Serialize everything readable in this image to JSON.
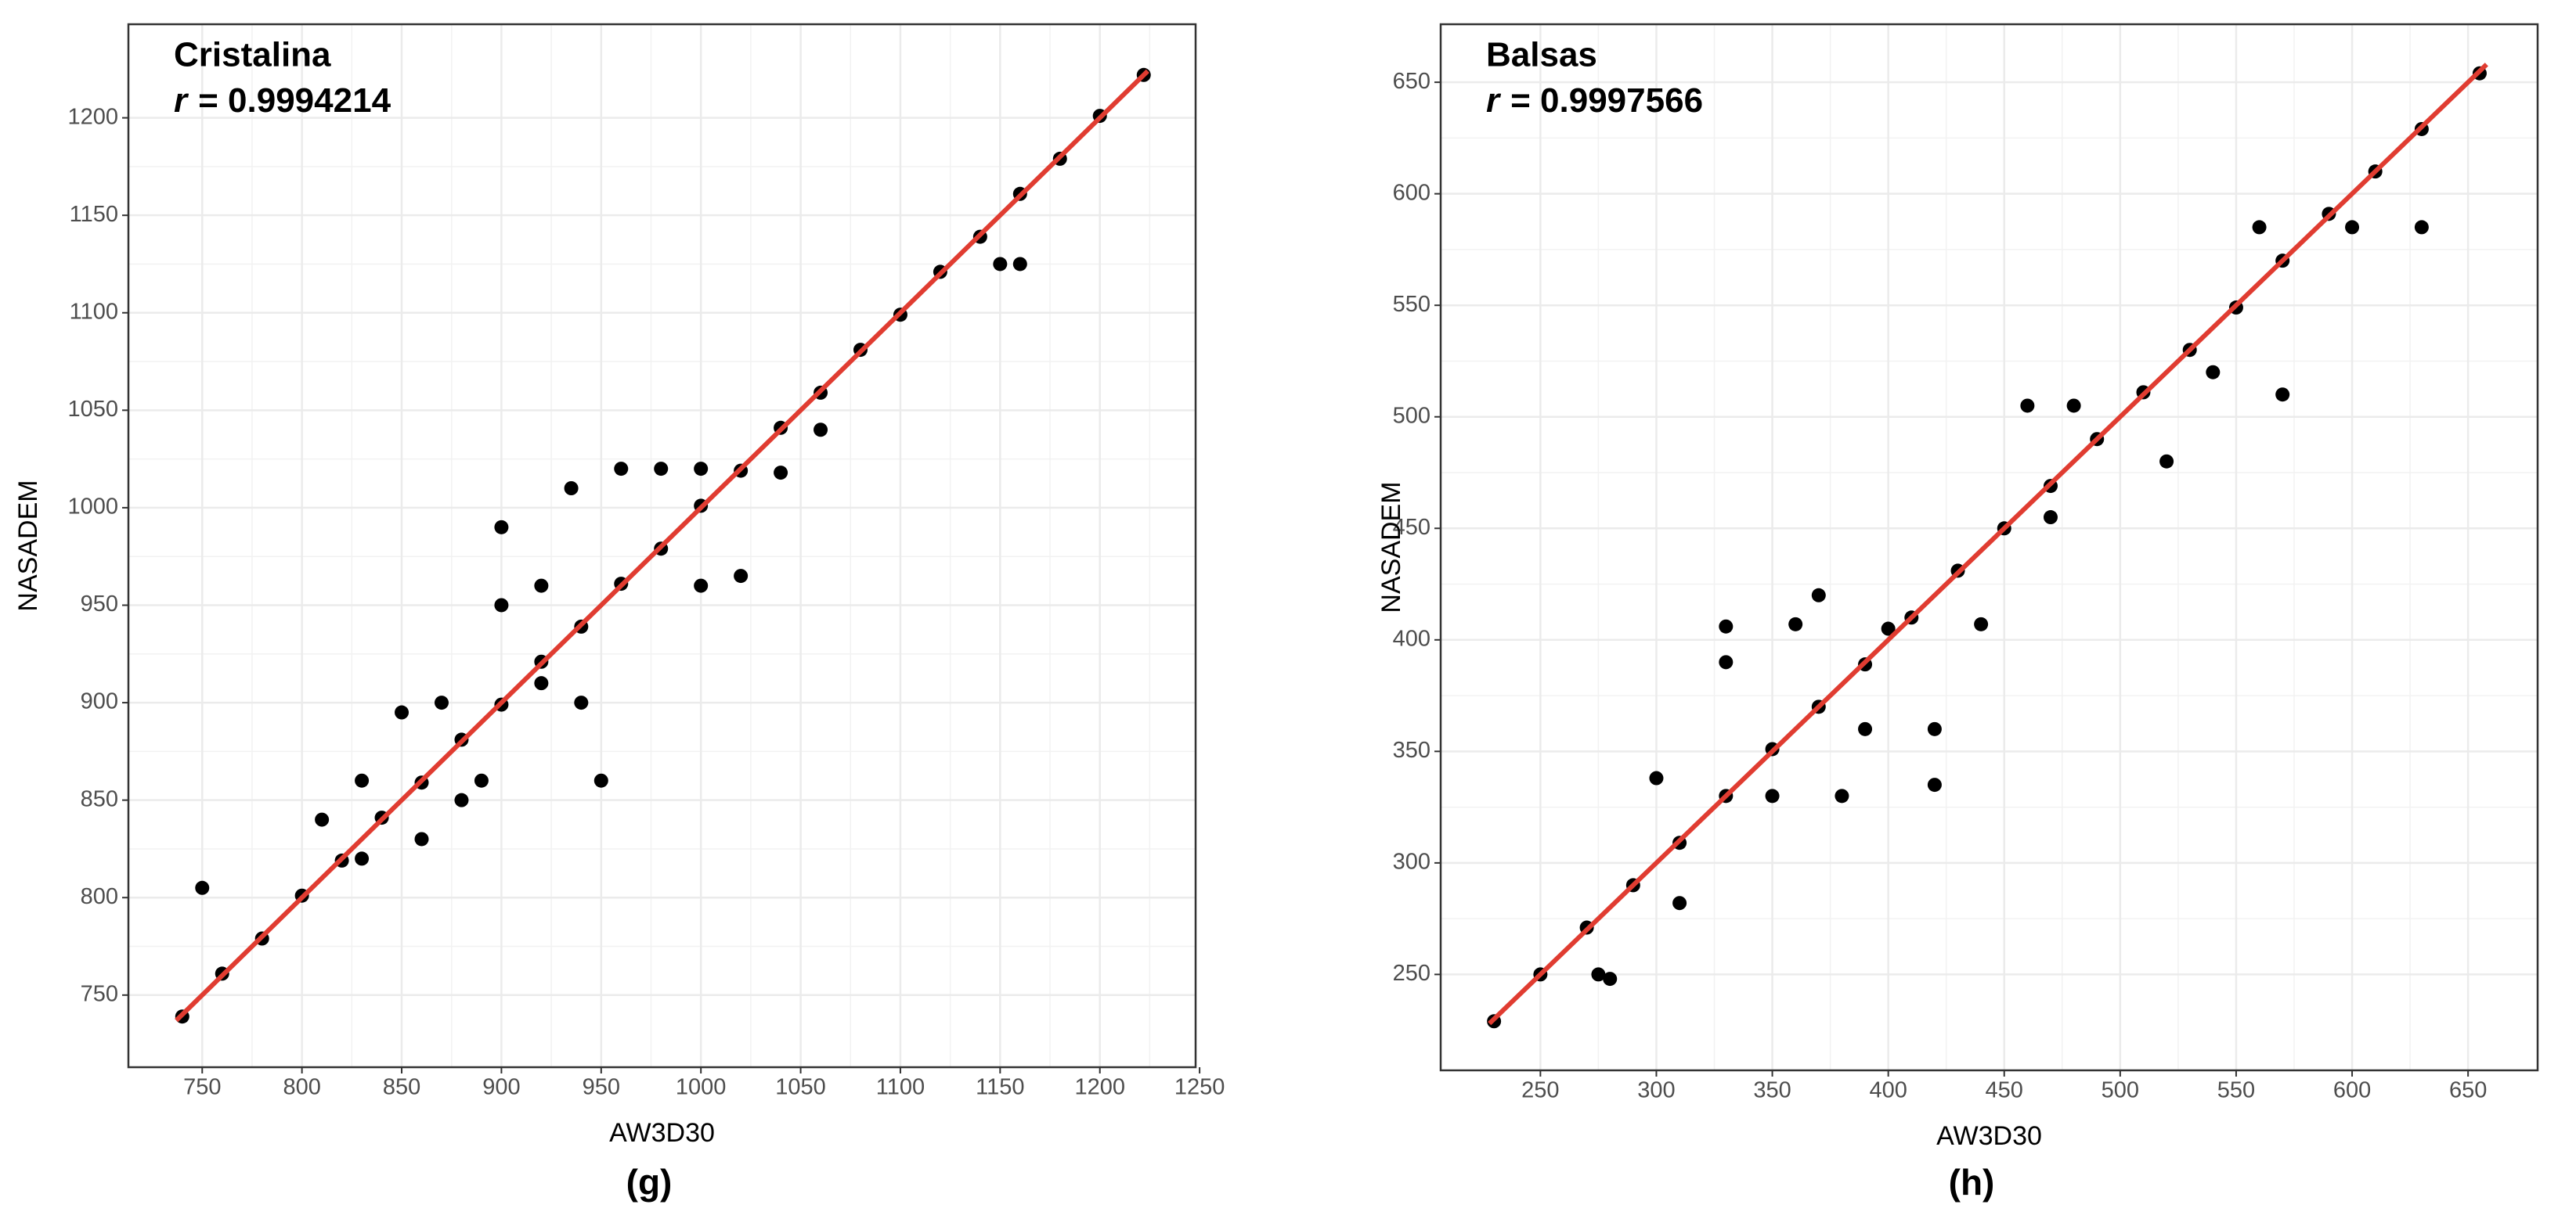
{
  "chart_data": [
    {
      "type": "scatter",
      "title": "Cristalina",
      "stat_symbol": "r",
      "stat_text": "= 0.9994214",
      "caption": "(g)",
      "xlabel": "AW3D30",
      "ylabel": "NASADEM",
      "color": "#000000",
      "grid": true,
      "xlim": [
        713,
        1248
      ],
      "ylim": [
        713,
        1248
      ],
      "xticks": [
        750,
        800,
        850,
        900,
        950,
        1000,
        1050,
        1100,
        1150,
        1200,
        1250
      ],
      "yticks": [
        750,
        800,
        850,
        900,
        950,
        1000,
        1050,
        1100,
        1150,
        1200
      ],
      "x": [
        740,
        760,
        780,
        800,
        820,
        840,
        860,
        880,
        900,
        920,
        940,
        960,
        980,
        1000,
        1020,
        1040,
        1060,
        1080,
        1100,
        1120,
        1140,
        1160,
        1180,
        1200,
        1222,
        750,
        810,
        830,
        850,
        830,
        870,
        880,
        890,
        860,
        900,
        920,
        940,
        950,
        935,
        960,
        980,
        1000,
        1040,
        1000,
        1020,
        1060,
        1150,
        1160,
        900,
        920
      ],
      "y": [
        739,
        761,
        779,
        801,
        819,
        841,
        859,
        881,
        899,
        921,
        939,
        961,
        979,
        1001,
        1019,
        1041,
        1059,
        1081,
        1099,
        1121,
        1139,
        1161,
        1179,
        1201,
        1222,
        805,
        840,
        860,
        895,
        820,
        900,
        850,
        860,
        830,
        950,
        960,
        900,
        860,
        1010,
        1020,
        1020,
        1020,
        1018,
        960,
        965,
        1040,
        1125,
        1125,
        990,
        910
      ],
      "fit_line": {
        "color": "#e03c31",
        "x": [
          737,
          1224
        ],
        "y": [
          737,
          1224
        ]
      }
    },
    {
      "type": "scatter",
      "title": "Balsas",
      "stat_symbol": "r",
      "stat_text": "= 0.9997566",
      "caption": "(h)",
      "xlabel": "AW3D30",
      "ylabel": "NASADEM",
      "color": "#000000",
      "grid": true,
      "xlim": [
        207,
        680
      ],
      "ylim": [
        207,
        676
      ],
      "xticks": [
        250,
        300,
        350,
        400,
        450,
        500,
        550,
        600,
        650
      ],
      "yticks": [
        250,
        300,
        350,
        400,
        450,
        500,
        550,
        600,
        650
      ],
      "x": [
        230,
        250,
        270,
        290,
        310,
        330,
        350,
        370,
        390,
        410,
        430,
        450,
        470,
        490,
        510,
        530,
        550,
        570,
        590,
        610,
        630,
        655,
        280,
        275,
        300,
        330,
        360,
        400,
        440,
        350,
        380,
        420,
        420,
        330,
        310,
        460,
        480,
        470,
        560,
        600,
        630,
        520,
        540,
        570,
        390,
        370
      ],
      "y": [
        229,
        250,
        271,
        290,
        309,
        330,
        351,
        370,
        389,
        410,
        431,
        450,
        469,
        490,
        511,
        530,
        549,
        570,
        591,
        610,
        629,
        654,
        248,
        250,
        338,
        406,
        407,
        405,
        407,
        330,
        330,
        335,
        360,
        390,
        282,
        505,
        505,
        455,
        585,
        585,
        585,
        480,
        520,
        510,
        360,
        420
      ],
      "fit_line": {
        "color": "#e03c31",
        "x": [
          228,
          658
        ],
        "y": [
          228,
          658
        ]
      }
    }
  ]
}
